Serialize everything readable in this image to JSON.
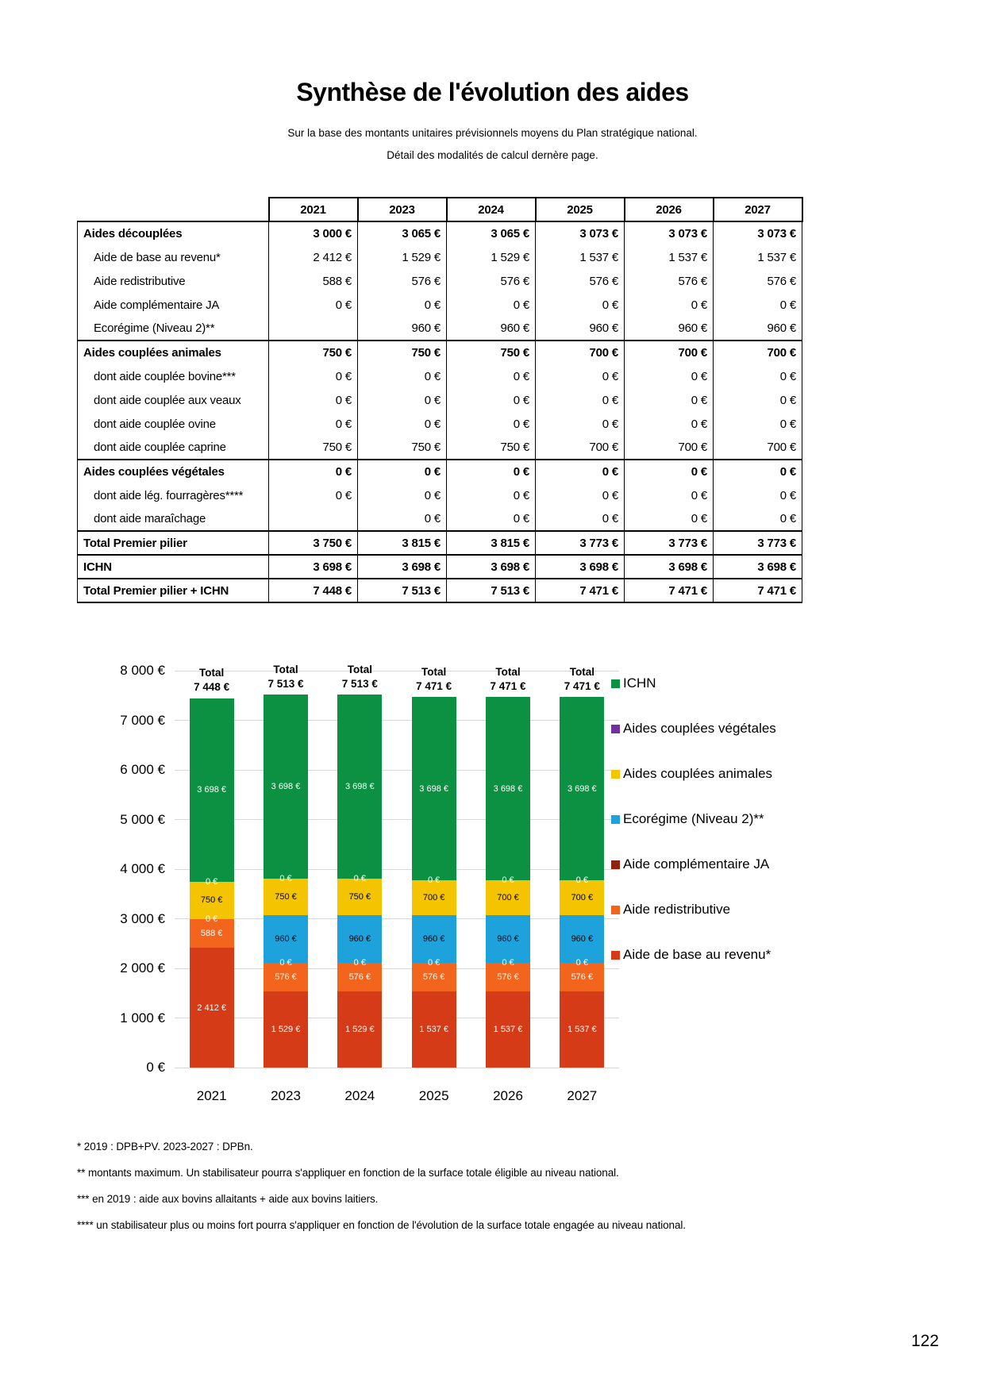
{
  "page": {
    "title": "Synthèse de l'évolution des aides",
    "subtitle1": "Sur la base des montants unitaires prévisionnels moyens du Plan stratégique national.",
    "subtitle2": "Détail des modalités de calcul dernère page.",
    "footnotes": [
      "* 2019 : DPB+PV. 2023-2027 : DPBn.",
      "** montants maximum. Un stabilisateur pourra s'appliquer en fonction de la surface totale éligible au niveau national.",
      "*** en 2019 : aide aux bovins allaitants + aide aux bovins laitiers.",
      "**** un stabilisateur plus ou moins fort pourra s'appliquer en fonction de l'évolution de la surface totale engagée au niveau national."
    ],
    "page_number": "122"
  },
  "table": {
    "col_headers": [
      "2021",
      "2023",
      "2024",
      "2025",
      "2026",
      "2027"
    ],
    "rows": [
      {
        "label": "Aides découplées",
        "bold": true,
        "sub": false,
        "section": false,
        "values": [
          "3 000 €",
          "3 065 €",
          "3 065 €",
          "3 073 €",
          "3 073 €",
          "3 073 €"
        ]
      },
      {
        "label": "Aide de base au revenu*",
        "bold": false,
        "sub": true,
        "section": false,
        "values": [
          "2 412 €",
          "1 529 €",
          "1 529 €",
          "1 537 €",
          "1 537 €",
          "1 537 €"
        ]
      },
      {
        "label": "Aide redistributive",
        "bold": false,
        "sub": true,
        "section": false,
        "values": [
          "588 €",
          "576 €",
          "576 €",
          "576 €",
          "576 €",
          "576 €"
        ]
      },
      {
        "label": "Aide complémentaire JA",
        "bold": false,
        "sub": true,
        "section": false,
        "values": [
          "0 €",
          "0 €",
          "0 €",
          "0 €",
          "0 €",
          "0 €"
        ]
      },
      {
        "label": "Ecorégime (Niveau 2)**",
        "bold": false,
        "sub": true,
        "section": false,
        "values": [
          "",
          "960 €",
          "960 €",
          "960 €",
          "960 €",
          "960 €"
        ]
      },
      {
        "label": "Aides couplées animales",
        "bold": true,
        "sub": false,
        "section": true,
        "values": [
          "750 €",
          "750 €",
          "750 €",
          "700 €",
          "700 €",
          "700 €"
        ]
      },
      {
        "label": "dont aide couplée bovine***",
        "bold": false,
        "sub": true,
        "section": false,
        "values": [
          "0 €",
          "0 €",
          "0 €",
          "0 €",
          "0 €",
          "0 €"
        ]
      },
      {
        "label": "dont aide couplée aux veaux",
        "bold": false,
        "sub": true,
        "section": false,
        "values": [
          "0 €",
          "0 €",
          "0 €",
          "0 €",
          "0 €",
          "0 €"
        ]
      },
      {
        "label": "dont aide couplée ovine",
        "bold": false,
        "sub": true,
        "section": false,
        "values": [
          "0 €",
          "0 €",
          "0 €",
          "0 €",
          "0 €",
          "0 €"
        ]
      },
      {
        "label": "dont aide couplée caprine",
        "bold": false,
        "sub": true,
        "section": false,
        "values": [
          "750 €",
          "750 €",
          "750 €",
          "700 €",
          "700 €",
          "700 €"
        ]
      },
      {
        "label": "Aides couplées végétales",
        "bold": true,
        "sub": false,
        "section": true,
        "values": [
          "0 €",
          "0 €",
          "0 €",
          "0 €",
          "0 €",
          "0 €"
        ]
      },
      {
        "label": "dont aide lég. fourragères****",
        "bold": false,
        "sub": true,
        "section": false,
        "values": [
          "0 €",
          "0 €",
          "0 €",
          "0 €",
          "0 €",
          "0 €"
        ]
      },
      {
        "label": "dont aide maraîchage",
        "bold": false,
        "sub": true,
        "section": false,
        "values": [
          "",
          "0 €",
          "0 €",
          "0 €",
          "0 €",
          "0 €"
        ]
      },
      {
        "label": "Total Premier pilier",
        "bold": true,
        "sub": false,
        "section": true,
        "values": [
          "3 750 €",
          "3 815 €",
          "3 815 €",
          "3 773 €",
          "3 773 €",
          "3 773 €"
        ]
      },
      {
        "label": "ICHN",
        "bold": true,
        "sub": false,
        "section": true,
        "values": [
          "3 698 €",
          "3 698 €",
          "3 698 €",
          "3 698 €",
          "3 698 €",
          "3 698 €"
        ]
      },
      {
        "label": "Total Premier pilier + ICHN",
        "bold": true,
        "sub": false,
        "section": true,
        "values": [
          "7 448 €",
          "7 513 €",
          "7 513 €",
          "7 471 €",
          "7 471 €",
          "7 471 €"
        ]
      }
    ]
  },
  "chart_data": {
    "type": "bar",
    "stacked": true,
    "title": "",
    "xlabel": "",
    "ylabel": "",
    "ylim": [
      0,
      8000
    ],
    "ytick_step": 1000,
    "ytick_labels": [
      "0 €",
      "1 000 €",
      "2 000 €",
      "3 000 €",
      "4 000 €",
      "5 000 €",
      "6 000 €",
      "7 000 €",
      "8 000 €"
    ],
    "grid": true,
    "legend_position": "right",
    "categories": [
      "2021",
      "2023",
      "2024",
      "2025",
      "2026",
      "2027"
    ],
    "series": [
      {
        "name": "Aide de base au revenu*",
        "color": "#d63b17",
        "label_color": "#ffffff",
        "values": [
          2412,
          1529,
          1529,
          1537,
          1537,
          1537
        ],
        "labels": [
          "2 412 €",
          "1 529 €",
          "1 529 €",
          "1 537 €",
          "1 537 €",
          "1 537 €"
        ]
      },
      {
        "name": "Aide redistributive",
        "color": "#f3641c",
        "label_color": "#ffffff",
        "values": [
          588,
          576,
          576,
          576,
          576,
          576
        ],
        "labels": [
          "588 €",
          "576 €",
          "576 €",
          "576 €",
          "576 €",
          "576 €"
        ]
      },
      {
        "name": "Aide complémentaire JA",
        "color": "#8c2313",
        "label_color": "#ffffff",
        "values": [
          0,
          0,
          0,
          0,
          0,
          0
        ],
        "labels": [
          "0 €",
          "0 €",
          "0 €",
          "0 €",
          "0 €",
          "0 €"
        ]
      },
      {
        "name": "Ecorégime (Niveau 2)**",
        "color": "#1da2dc",
        "label_color": "#000000",
        "values": [
          null,
          960,
          960,
          960,
          960,
          960
        ],
        "labels": [
          null,
          "960 €",
          "960 €",
          "960 €",
          "960 €",
          "960 €"
        ]
      },
      {
        "name": "Aides couplées animales",
        "color": "#f5c400",
        "label_color": "#000000",
        "values": [
          750,
          750,
          750,
          700,
          700,
          700
        ],
        "labels": [
          "750 €",
          "750 €",
          "750 €",
          "700 €",
          "700 €",
          "700 €"
        ]
      },
      {
        "name": "Aides couplées végétales",
        "color": "#7030a0",
        "label_color": "#ffffff",
        "values": [
          0,
          0,
          0,
          0,
          0,
          0
        ],
        "labels": [
          "0 €",
          "0 €",
          "0 €",
          "0 €",
          "0 €",
          "0 €"
        ]
      },
      {
        "name": "ICHN",
        "color": "#0c9143",
        "label_color": "#ffffff",
        "values": [
          3698,
          3698,
          3698,
          3698,
          3698,
          3698
        ],
        "labels": [
          "3 698 €",
          "3 698 €",
          "3 698 €",
          "3 698 €",
          "3 698 €",
          "3 698 €"
        ]
      }
    ],
    "totals": [
      7448,
      7513,
      7513,
      7471,
      7471,
      7471
    ],
    "total_title": "Total",
    "total_labels": [
      "7 448 €",
      "7 513 €",
      "7 513 €",
      "7 471 €",
      "7 471 €",
      "7 471 €"
    ],
    "legend": [
      {
        "label": "ICHN",
        "color": "#0c9143"
      },
      {
        "label": "Aides couplées végétales",
        "color": "#7030a0"
      },
      {
        "label": "Aides couplées animales",
        "color": "#f5c400"
      },
      {
        "label": "Ecorégime (Niveau 2)**",
        "color": "#1da2dc"
      },
      {
        "label": "Aide complémentaire JA",
        "color": "#8c2313"
      },
      {
        "label": "Aide redistributive",
        "color": "#f3641c"
      },
      {
        "label": "Aide de base au revenu*",
        "color": "#d63b17"
      }
    ]
  }
}
